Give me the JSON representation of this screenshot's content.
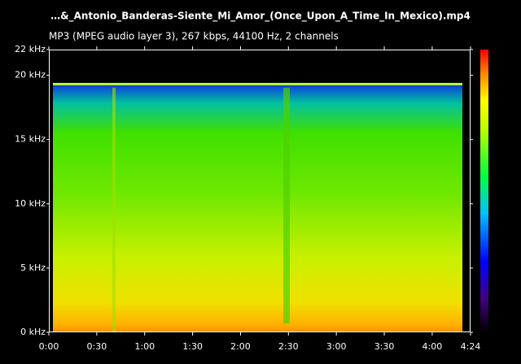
{
  "chart_data": {
    "type": "spectrogram",
    "title": "…&_Antonio_Banderas-Siente_Mi_Amor_(Once_Upon_A_Time_In_Mexico).mp4",
    "subtitle": "MP3 (MPEG audio layer 3), 267 kbps, 44100 Hz, 2 channels",
    "xlim": [
      0,
      264
    ],
    "xticks": [
      {
        "value": 0,
        "label": "0:00"
      },
      {
        "value": 30,
        "label": "0:30"
      },
      {
        "value": 60,
        "label": "1:00"
      },
      {
        "value": 90,
        "label": "1:30"
      },
      {
        "value": 120,
        "label": "2:00"
      },
      {
        "value": 150,
        "label": "2:30"
      },
      {
        "value": 180,
        "label": "3:00"
      },
      {
        "value": 210,
        "label": "3:30"
      },
      {
        "value": 240,
        "label": "4:00"
      },
      {
        "value": 264,
        "label": "4:24"
      }
    ],
    "ylim": [
      0,
      22
    ],
    "yticks": [
      {
        "value": 0,
        "label": "0 kHz"
      },
      {
        "value": 5,
        "label": "5 kHz"
      },
      {
        "value": 10,
        "label": "10 kHz"
      },
      {
        "value": 15,
        "label": "15 kHz"
      },
      {
        "value": 20,
        "label": "20 kHz"
      },
      {
        "value": 22,
        "label": "22 kHz"
      }
    ]
  }
}
